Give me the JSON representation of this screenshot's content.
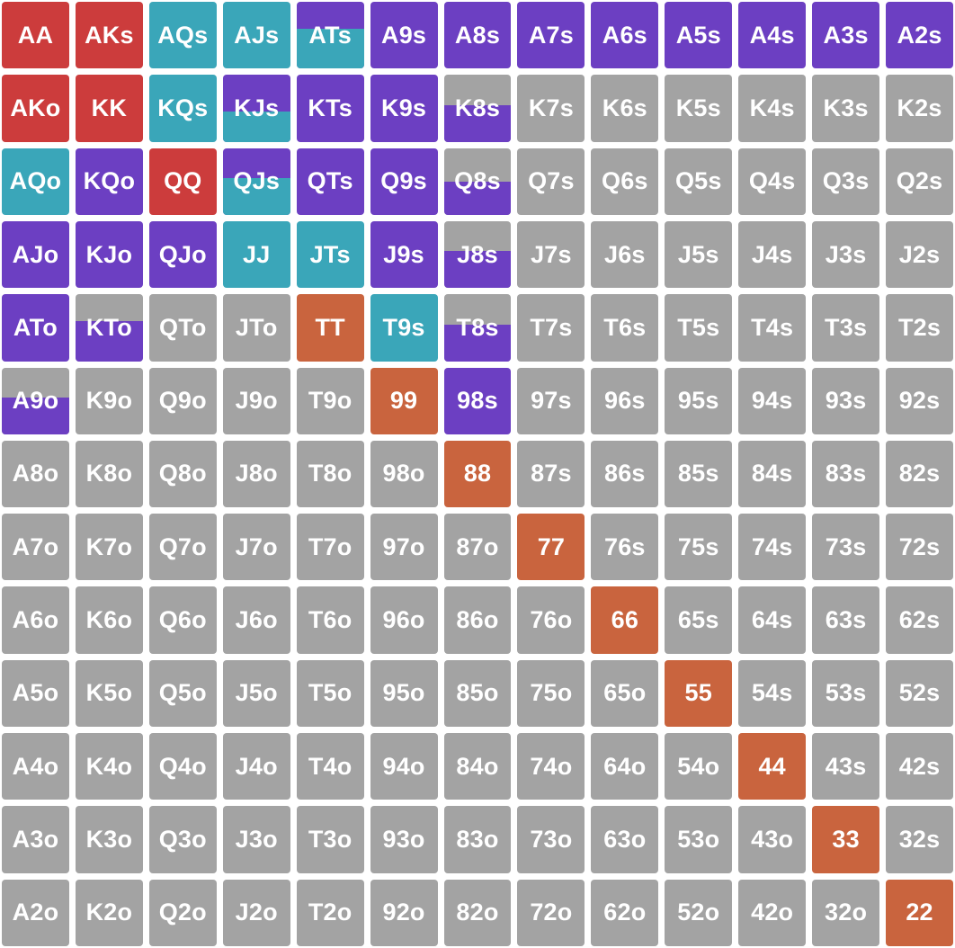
{
  "colors": {
    "fold": "#a3a3a3",
    "raise_red": "#cc3c3c",
    "pair_orange": "#c9643e",
    "teal": "#3aa6b9",
    "purple": "#6c3fc2"
  },
  "rows": [
    [
      {
        "label": "AA",
        "action": "raise_red"
      },
      {
        "label": "AKs",
        "action": "raise_red"
      },
      {
        "label": "AQs",
        "action": "teal"
      },
      {
        "label": "AJs",
        "action": "teal"
      },
      {
        "label": "ATs",
        "action": "purple",
        "partial": {
          "color": "teal",
          "fraction": 0.6
        }
      },
      {
        "label": "A9s",
        "action": "purple"
      },
      {
        "label": "A8s",
        "action": "purple"
      },
      {
        "label": "A7s",
        "action": "purple"
      },
      {
        "label": "A6s",
        "action": "purple"
      },
      {
        "label": "A5s",
        "action": "purple"
      },
      {
        "label": "A4s",
        "action": "purple"
      },
      {
        "label": "A3s",
        "action": "purple"
      },
      {
        "label": "A2s",
        "action": "purple"
      }
    ],
    [
      {
        "label": "AKo",
        "action": "raise_red"
      },
      {
        "label": "KK",
        "action": "raise_red"
      },
      {
        "label": "KQs",
        "action": "teal"
      },
      {
        "label": "KJs",
        "action": "purple",
        "partial": {
          "color": "teal",
          "fraction": 0.45
        }
      },
      {
        "label": "KTs",
        "action": "purple"
      },
      {
        "label": "K9s",
        "action": "purple"
      },
      {
        "label": "K8s",
        "action": "fold",
        "partial": {
          "color": "purple",
          "fraction": 0.55
        }
      },
      {
        "label": "K7s",
        "action": "fold"
      },
      {
        "label": "K6s",
        "action": "fold"
      },
      {
        "label": "K5s",
        "action": "fold"
      },
      {
        "label": "K4s",
        "action": "fold"
      },
      {
        "label": "K3s",
        "action": "fold"
      },
      {
        "label": "K2s",
        "action": "fold"
      }
    ],
    [
      {
        "label": "AQo",
        "action": "teal"
      },
      {
        "label": "KQo",
        "action": "purple"
      },
      {
        "label": "QQ",
        "action": "raise_red"
      },
      {
        "label": "QJs",
        "action": "purple",
        "partial": {
          "color": "teal",
          "fraction": 0.55
        }
      },
      {
        "label": "QTs",
        "action": "purple"
      },
      {
        "label": "Q9s",
        "action": "purple"
      },
      {
        "label": "Q8s",
        "action": "fold",
        "partial": {
          "color": "purple",
          "fraction": 0.5
        }
      },
      {
        "label": "Q7s",
        "action": "fold"
      },
      {
        "label": "Q6s",
        "action": "fold"
      },
      {
        "label": "Q5s",
        "action": "fold"
      },
      {
        "label": "Q4s",
        "action": "fold"
      },
      {
        "label": "Q3s",
        "action": "fold"
      },
      {
        "label": "Q2s",
        "action": "fold"
      }
    ],
    [
      {
        "label": "AJo",
        "action": "purple"
      },
      {
        "label": "KJo",
        "action": "purple"
      },
      {
        "label": "QJo",
        "action": "purple"
      },
      {
        "label": "JJ",
        "action": "teal"
      },
      {
        "label": "JTs",
        "action": "teal"
      },
      {
        "label": "J9s",
        "action": "purple"
      },
      {
        "label": "J8s",
        "action": "fold",
        "partial": {
          "color": "purple",
          "fraction": 0.55
        }
      },
      {
        "label": "J7s",
        "action": "fold"
      },
      {
        "label": "J6s",
        "action": "fold"
      },
      {
        "label": "J5s",
        "action": "fold"
      },
      {
        "label": "J4s",
        "action": "fold"
      },
      {
        "label": "J3s",
        "action": "fold"
      },
      {
        "label": "J2s",
        "action": "fold"
      }
    ],
    [
      {
        "label": "ATo",
        "action": "purple"
      },
      {
        "label": "KTo",
        "action": "fold",
        "partial": {
          "color": "purple",
          "fraction": 0.6
        }
      },
      {
        "label": "QTo",
        "action": "fold"
      },
      {
        "label": "JTo",
        "action": "fold"
      },
      {
        "label": "TT",
        "action": "pair_orange"
      },
      {
        "label": "T9s",
        "action": "teal"
      },
      {
        "label": "T8s",
        "action": "fold",
        "partial": {
          "color": "purple",
          "fraction": 0.55
        }
      },
      {
        "label": "T7s",
        "action": "fold"
      },
      {
        "label": "T6s",
        "action": "fold"
      },
      {
        "label": "T5s",
        "action": "fold"
      },
      {
        "label": "T4s",
        "action": "fold"
      },
      {
        "label": "T3s",
        "action": "fold"
      },
      {
        "label": "T2s",
        "action": "fold"
      }
    ],
    [
      {
        "label": "A9o",
        "action": "fold",
        "partial": {
          "color": "purple",
          "fraction": 0.55
        }
      },
      {
        "label": "K9o",
        "action": "fold"
      },
      {
        "label": "Q9o",
        "action": "fold"
      },
      {
        "label": "J9o",
        "action": "fold"
      },
      {
        "label": "T9o",
        "action": "fold"
      },
      {
        "label": "99",
        "action": "pair_orange"
      },
      {
        "label": "98s",
        "action": "purple"
      },
      {
        "label": "97s",
        "action": "fold"
      },
      {
        "label": "96s",
        "action": "fold"
      },
      {
        "label": "95s",
        "action": "fold"
      },
      {
        "label": "94s",
        "action": "fold"
      },
      {
        "label": "93s",
        "action": "fold"
      },
      {
        "label": "92s",
        "action": "fold"
      }
    ],
    [
      {
        "label": "A8o",
        "action": "fold"
      },
      {
        "label": "K8o",
        "action": "fold"
      },
      {
        "label": "Q8o",
        "action": "fold"
      },
      {
        "label": "J8o",
        "action": "fold"
      },
      {
        "label": "T8o",
        "action": "fold"
      },
      {
        "label": "98o",
        "action": "fold"
      },
      {
        "label": "88",
        "action": "pair_orange"
      },
      {
        "label": "87s",
        "action": "fold"
      },
      {
        "label": "86s",
        "action": "fold"
      },
      {
        "label": "85s",
        "action": "fold"
      },
      {
        "label": "84s",
        "action": "fold"
      },
      {
        "label": "83s",
        "action": "fold"
      },
      {
        "label": "82s",
        "action": "fold"
      }
    ],
    [
      {
        "label": "A7o",
        "action": "fold"
      },
      {
        "label": "K7o",
        "action": "fold"
      },
      {
        "label": "Q7o",
        "action": "fold"
      },
      {
        "label": "J7o",
        "action": "fold"
      },
      {
        "label": "T7o",
        "action": "fold"
      },
      {
        "label": "97o",
        "action": "fold"
      },
      {
        "label": "87o",
        "action": "fold"
      },
      {
        "label": "77",
        "action": "pair_orange"
      },
      {
        "label": "76s",
        "action": "fold"
      },
      {
        "label": "75s",
        "action": "fold"
      },
      {
        "label": "74s",
        "action": "fold"
      },
      {
        "label": "73s",
        "action": "fold"
      },
      {
        "label": "72s",
        "action": "fold"
      }
    ],
    [
      {
        "label": "A6o",
        "action": "fold"
      },
      {
        "label": "K6o",
        "action": "fold"
      },
      {
        "label": "Q6o",
        "action": "fold"
      },
      {
        "label": "J6o",
        "action": "fold"
      },
      {
        "label": "T6o",
        "action": "fold"
      },
      {
        "label": "96o",
        "action": "fold"
      },
      {
        "label": "86o",
        "action": "fold"
      },
      {
        "label": "76o",
        "action": "fold"
      },
      {
        "label": "66",
        "action": "pair_orange"
      },
      {
        "label": "65s",
        "action": "fold"
      },
      {
        "label": "64s",
        "action": "fold"
      },
      {
        "label": "63s",
        "action": "fold"
      },
      {
        "label": "62s",
        "action": "fold"
      }
    ],
    [
      {
        "label": "A5o",
        "action": "fold"
      },
      {
        "label": "K5o",
        "action": "fold"
      },
      {
        "label": "Q5o",
        "action": "fold"
      },
      {
        "label": "J5o",
        "action": "fold"
      },
      {
        "label": "T5o",
        "action": "fold"
      },
      {
        "label": "95o",
        "action": "fold"
      },
      {
        "label": "85o",
        "action": "fold"
      },
      {
        "label": "75o",
        "action": "fold"
      },
      {
        "label": "65o",
        "action": "fold"
      },
      {
        "label": "55",
        "action": "pair_orange"
      },
      {
        "label": "54s",
        "action": "fold"
      },
      {
        "label": "53s",
        "action": "fold"
      },
      {
        "label": "52s",
        "action": "fold"
      }
    ],
    [
      {
        "label": "A4o",
        "action": "fold"
      },
      {
        "label": "K4o",
        "action": "fold"
      },
      {
        "label": "Q4o",
        "action": "fold"
      },
      {
        "label": "J4o",
        "action": "fold"
      },
      {
        "label": "T4o",
        "action": "fold"
      },
      {
        "label": "94o",
        "action": "fold"
      },
      {
        "label": "84o",
        "action": "fold"
      },
      {
        "label": "74o",
        "action": "fold"
      },
      {
        "label": "64o",
        "action": "fold"
      },
      {
        "label": "54o",
        "action": "fold"
      },
      {
        "label": "44",
        "action": "pair_orange"
      },
      {
        "label": "43s",
        "action": "fold"
      },
      {
        "label": "42s",
        "action": "fold"
      }
    ],
    [
      {
        "label": "A3o",
        "action": "fold"
      },
      {
        "label": "K3o",
        "action": "fold"
      },
      {
        "label": "Q3o",
        "action": "fold"
      },
      {
        "label": "J3o",
        "action": "fold"
      },
      {
        "label": "T3o",
        "action": "fold"
      },
      {
        "label": "93o",
        "action": "fold"
      },
      {
        "label": "83o",
        "action": "fold"
      },
      {
        "label": "73o",
        "action": "fold"
      },
      {
        "label": "63o",
        "action": "fold"
      },
      {
        "label": "53o",
        "action": "fold"
      },
      {
        "label": "43o",
        "action": "fold"
      },
      {
        "label": "33",
        "action": "pair_orange"
      },
      {
        "label": "32s",
        "action": "fold"
      }
    ],
    [
      {
        "label": "A2o",
        "action": "fold"
      },
      {
        "label": "K2o",
        "action": "fold"
      },
      {
        "label": "Q2o",
        "action": "fold"
      },
      {
        "label": "J2o",
        "action": "fold"
      },
      {
        "label": "T2o",
        "action": "fold"
      },
      {
        "label": "92o",
        "action": "fold"
      },
      {
        "label": "82o",
        "action": "fold"
      },
      {
        "label": "72o",
        "action": "fold"
      },
      {
        "label": "62o",
        "action": "fold"
      },
      {
        "label": "52o",
        "action": "fold"
      },
      {
        "label": "42o",
        "action": "fold"
      },
      {
        "label": "32o",
        "action": "fold"
      },
      {
        "label": "22",
        "action": "pair_orange"
      }
    ]
  ]
}
